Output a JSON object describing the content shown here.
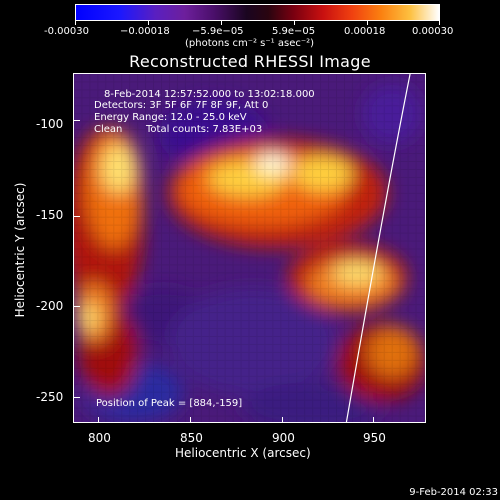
{
  "colorbar": {
    "ticks": [
      "-0.00030",
      "−0.00018",
      "−5.9e−05",
      "5.9e−05",
      "0.00018",
      "0.00030"
    ],
    "units": "(photons cm⁻² s⁻¹ asec⁻²)"
  },
  "plot": {
    "title": "Reconstructed RHESSI Image",
    "info": {
      "time_range": "8-Feb-2014 12:57:52.000 to 13:02:18.000",
      "detectors": "Detectors: 3F 5F 6F 7F 8F 9F, Att 0",
      "energy": "Energy Range: 12.0 - 25.0 keV",
      "method": "Clean",
      "counts": "Total counts: 7.83E+03"
    },
    "peak": "Position of Peak = [884,-159]",
    "xlabel": "Heliocentric X (arcsec)",
    "ylabel": "Heliocentric Y (arcsec)",
    "xticks": [
      "800",
      "850",
      "900",
      "950"
    ],
    "yticks": [
      "-100",
      "-150",
      "-200",
      "-250"
    ]
  },
  "footer": {
    "date": "9-Feb-2014 02:33"
  }
}
